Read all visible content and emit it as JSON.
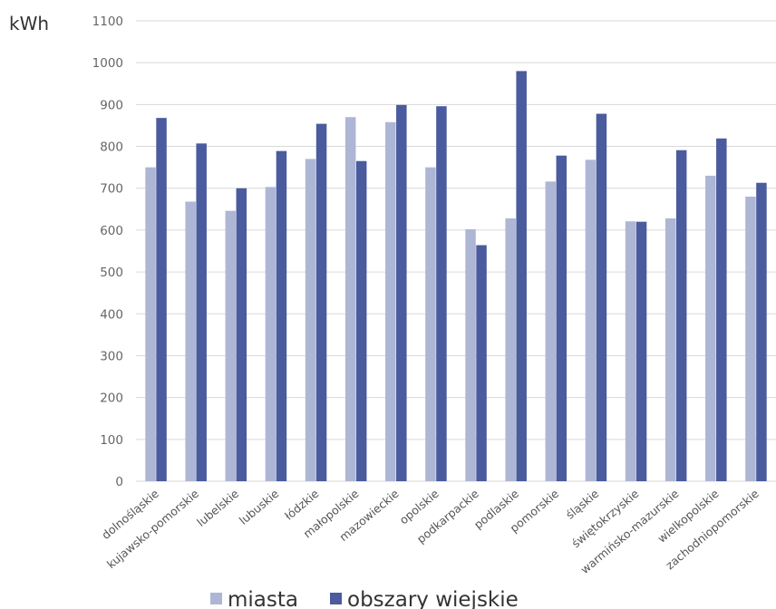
{
  "chart_data": {
    "type": "bar",
    "title": "",
    "xlabel": "",
    "ylabel": "kWh",
    "ylim": [
      0,
      1100
    ],
    "yticks": [
      0,
      100,
      200,
      300,
      400,
      500,
      600,
      700,
      800,
      900,
      1000,
      1100
    ],
    "grid": true,
    "legend_position": "bottom",
    "categories": [
      "dolnośląskie",
      "kujawsko-pomorskie",
      "lubelskie",
      "lubuskie",
      "łódzkie",
      "małopolskie",
      "mazowieckie",
      "opolskie",
      "podkarpackie",
      "podlaskie",
      "pomorskie",
      "śląskie",
      "świętokrzyskie",
      "warmińsko-mazurskie",
      "wielkopolskie",
      "zachodniopomorskie"
    ],
    "series": [
      {
        "name": "miasta",
        "color": "#aeb6d6",
        "values": [
          750,
          668,
          646,
          703,
          770,
          870,
          858,
          750,
          602,
          628,
          716,
          768,
          621,
          628,
          730,
          680
        ]
      },
      {
        "name": "obszary wiejskie",
        "color": "#4a5b9e",
        "values": [
          868,
          807,
          700,
          789,
          854,
          765,
          899,
          896,
          564,
          980,
          778,
          878,
          620,
          791,
          819,
          713
        ]
      }
    ]
  }
}
